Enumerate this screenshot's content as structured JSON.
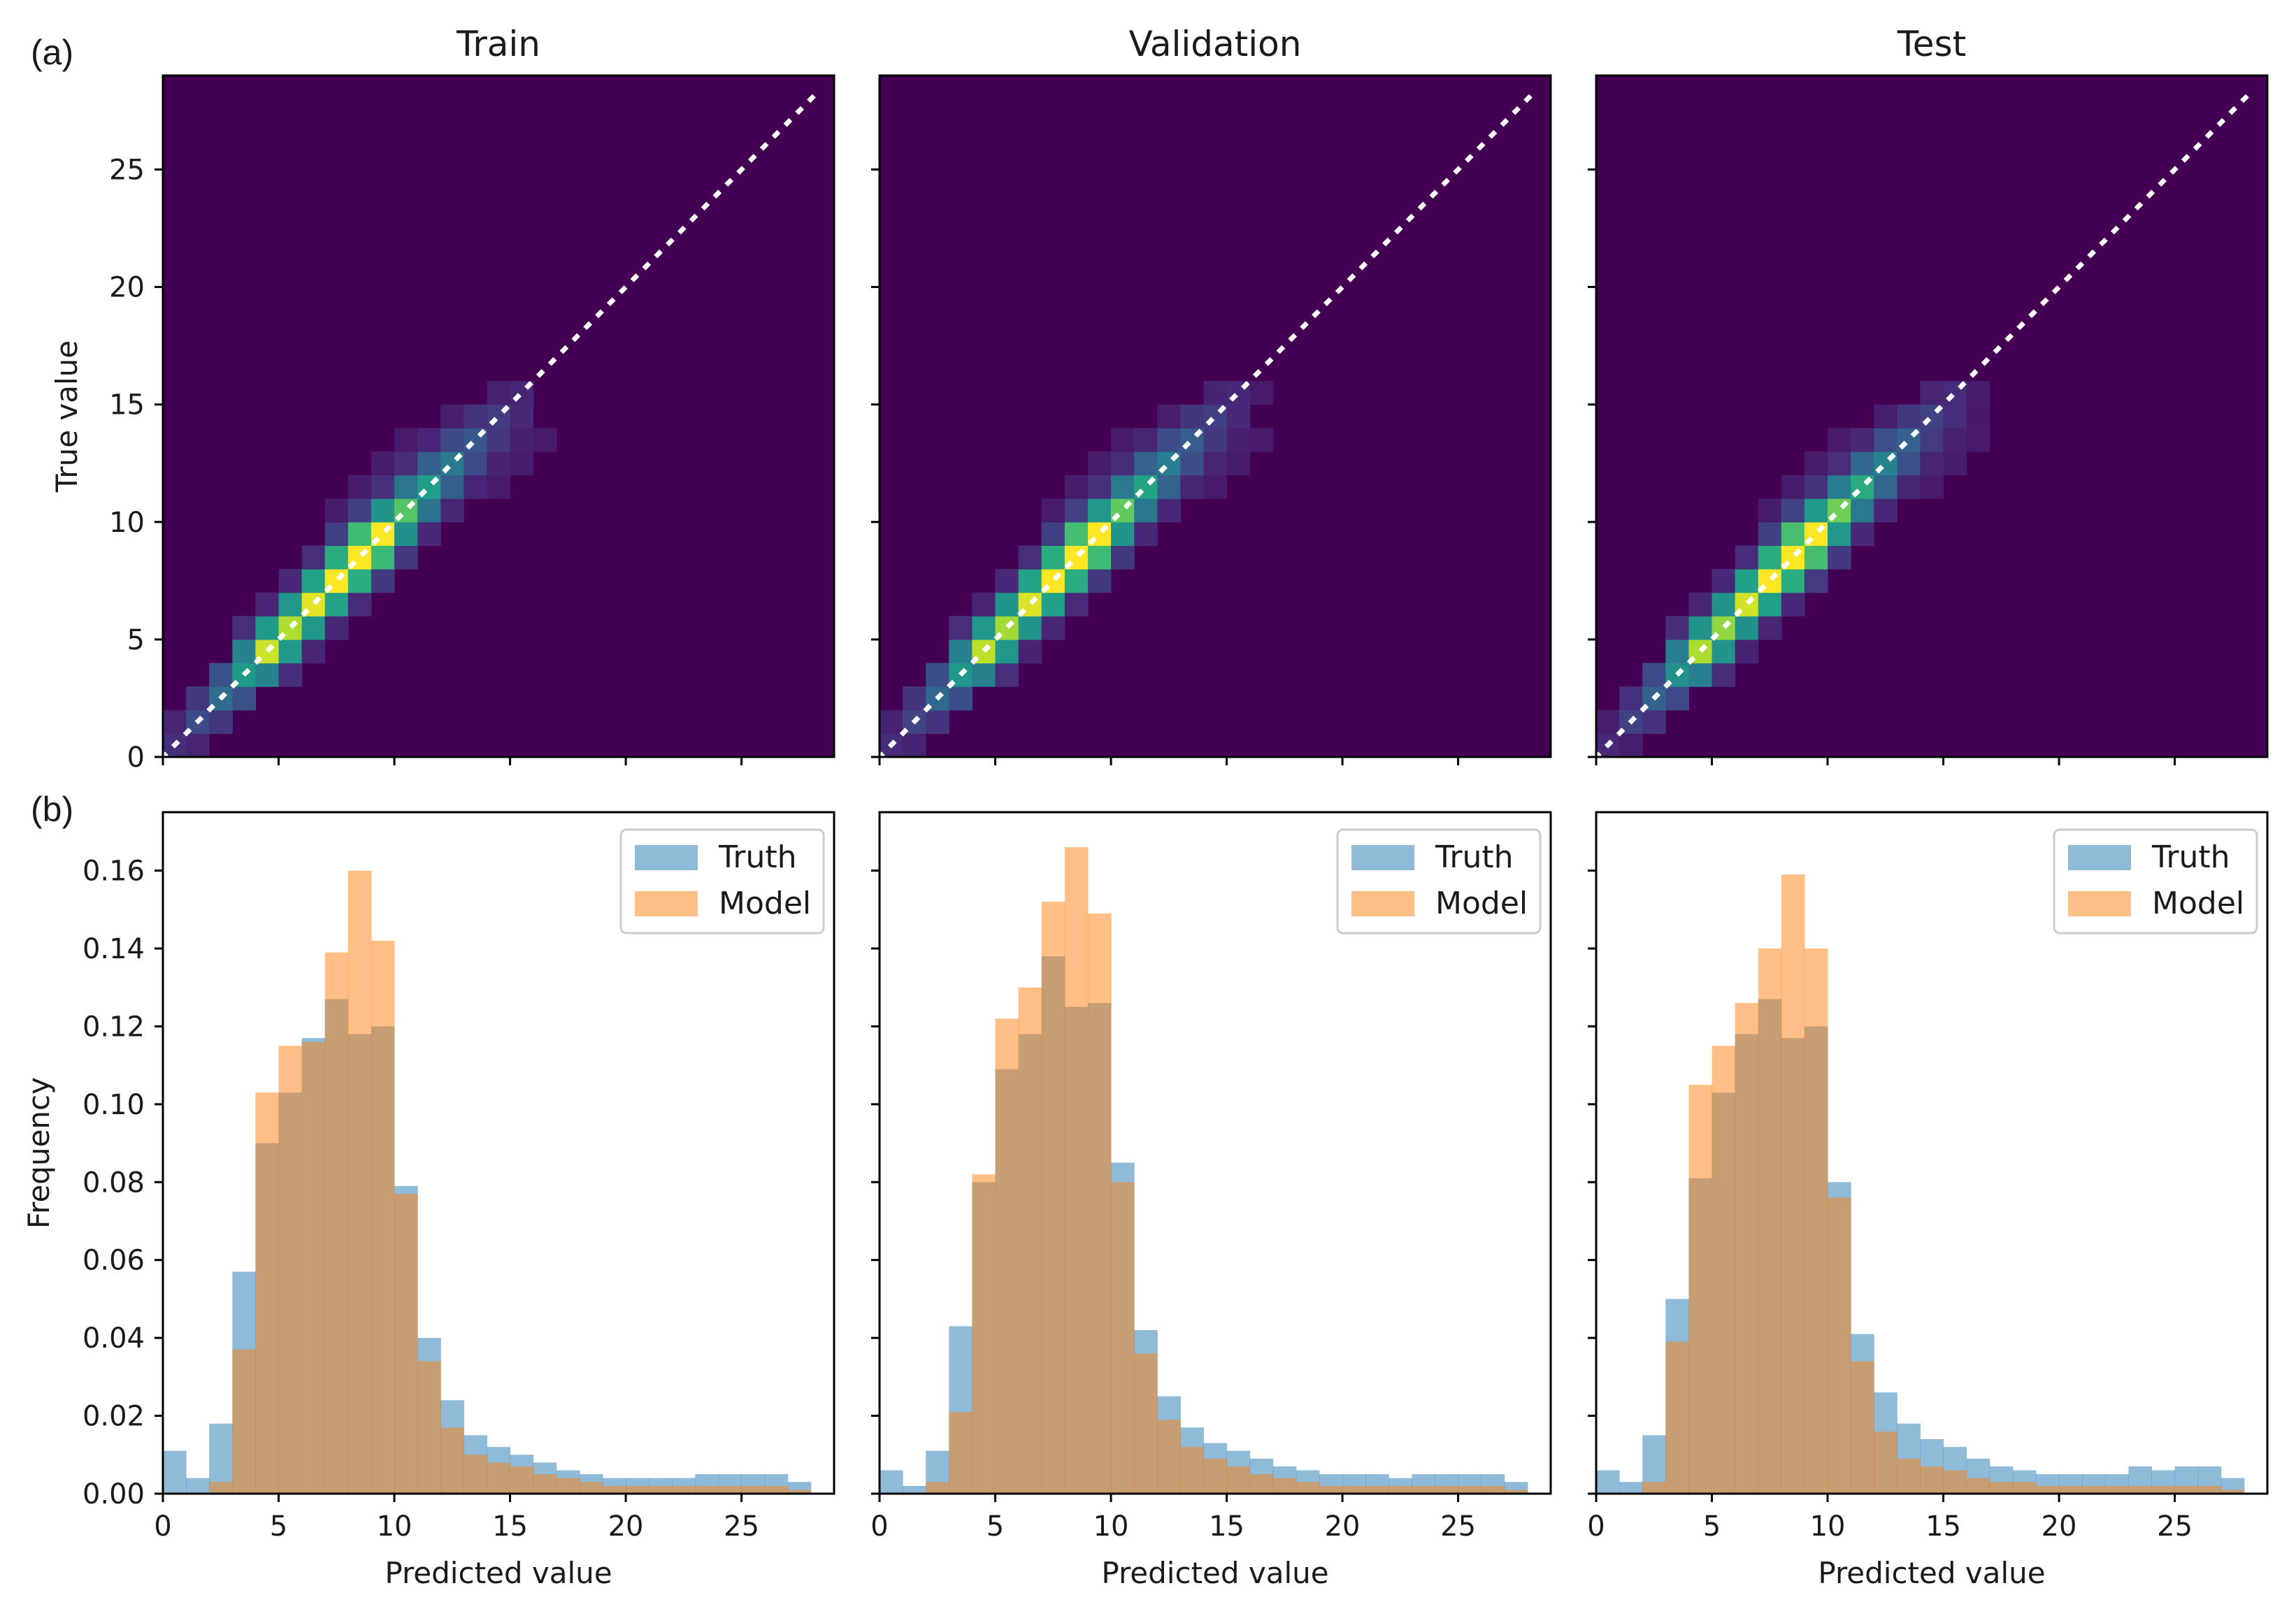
{
  "figure": {
    "panel_labels": [
      "(a)",
      "(b)"
    ],
    "x_label": "Predicted value",
    "heatmap_y_label": "True value",
    "hist_y_label": "Frequency"
  },
  "colors": {
    "truth": "#1f77b4",
    "model": "#ff7f0e",
    "identity_line": "#ffffff",
    "viridis": [
      "#440154",
      "#482878",
      "#3e4a89",
      "#31688e",
      "#26828e",
      "#1f9e89",
      "#35b779",
      "#6ece58",
      "#b5de2b",
      "#fde725"
    ]
  },
  "chart_data": [
    {
      "type": "heatmap",
      "id": "heatmap-train",
      "title": "Train",
      "xlabel": "",
      "ylabel": "True value",
      "xlim": [
        0,
        29
      ],
      "ylim": [
        0,
        29
      ],
      "xticks": [
        0,
        5,
        10,
        15,
        20,
        25
      ],
      "yticks": [
        0,
        5,
        10,
        15,
        20,
        25
      ],
      "ytick_labels": [
        "0",
        "5",
        "10",
        "15",
        "20",
        "25"
      ],
      "bin_width": 1,
      "colormap": "viridis",
      "identity_line": true,
      "description": "2D histogram of predicted vs. true value; density concentrated along the diagonal between 3 and 11, peaks near (4,4) and (8-9,8-9)"
    },
    {
      "type": "heatmap",
      "id": "heatmap-validation",
      "title": "Validation",
      "xlabel": "",
      "ylabel": "",
      "xlim": [
        0,
        29
      ],
      "ylim": [
        0,
        29
      ],
      "xticks": [
        0,
        5,
        10,
        15,
        20,
        25
      ],
      "yticks": [
        0,
        5,
        10,
        15,
        20,
        25
      ],
      "bin_width": 1,
      "colormap": "viridis",
      "identity_line": true
    },
    {
      "type": "heatmap",
      "id": "heatmap-test",
      "title": "Test",
      "xlabel": "",
      "ylabel": "",
      "xlim": [
        0,
        29
      ],
      "ylim": [
        0,
        29
      ],
      "xticks": [
        0,
        5,
        10,
        15,
        20,
        25
      ],
      "yticks": [
        0,
        5,
        10,
        15,
        20,
        25
      ],
      "bin_width": 1,
      "colormap": "viridis",
      "identity_line": true
    },
    {
      "type": "bar",
      "id": "hist-train",
      "xlabel": "Predicted value",
      "ylabel": "Frequency",
      "xlim": [
        0,
        29
      ],
      "ylim": [
        0,
        0.175
      ],
      "xticks": [
        0,
        5,
        10,
        15,
        20,
        25
      ],
      "xtick_labels": [
        "0",
        "5",
        "10",
        "15",
        "20",
        "25"
      ],
      "yticks": [
        0,
        0.02,
        0.04,
        0.06,
        0.08,
        0.1,
        0.12,
        0.14,
        0.16
      ],
      "ytick_labels": [
        "0.00",
        "0.02",
        "0.04",
        "0.06",
        "0.08",
        "0.10",
        "0.12",
        "0.14",
        "0.16"
      ],
      "bin_edges": [
        0,
        1,
        2,
        3,
        4,
        5,
        6,
        7,
        8,
        9,
        10,
        11,
        12,
        13,
        14,
        15,
        16,
        17,
        18,
        19,
        20,
        21,
        22,
        23,
        24,
        25,
        26,
        27,
        28
      ],
      "legend": "top-right",
      "series": [
        {
          "name": "Truth",
          "values": [
            0.011,
            0.004,
            0.018,
            0.057,
            0.09,
            0.103,
            0.117,
            0.127,
            0.118,
            0.12,
            0.079,
            0.04,
            0.024,
            0.015,
            0.012,
            0.01,
            0.008,
            0.006,
            0.005,
            0.004,
            0.004,
            0.004,
            0.004,
            0.005,
            0.005,
            0.005,
            0.005,
            0.003
          ]
        },
        {
          "name": "Model",
          "values": [
            0.0,
            0.0,
            0.003,
            0.037,
            0.103,
            0.115,
            0.116,
            0.139,
            0.16,
            0.142,
            0.077,
            0.034,
            0.017,
            0.01,
            0.008,
            0.007,
            0.005,
            0.004,
            0.003,
            0.002,
            0.002,
            0.002,
            0.002,
            0.002,
            0.002,
            0.002,
            0.002,
            0.001
          ]
        }
      ]
    },
    {
      "type": "bar",
      "id": "hist-validation",
      "xlabel": "Predicted value",
      "ylabel": "",
      "xlim": [
        0,
        29
      ],
      "ylim": [
        0,
        0.175
      ],
      "xticks": [
        0,
        5,
        10,
        15,
        20,
        25
      ],
      "xtick_labels": [
        "0",
        "5",
        "10",
        "15",
        "20",
        "25"
      ],
      "yticks": [
        0,
        0.02,
        0.04,
        0.06,
        0.08,
        0.1,
        0.12,
        0.14,
        0.16
      ],
      "bin_edges": [
        0,
        1,
        2,
        3,
        4,
        5,
        6,
        7,
        8,
        9,
        10,
        11,
        12,
        13,
        14,
        15,
        16,
        17,
        18,
        19,
        20,
        21,
        22,
        23,
        24,
        25,
        26,
        27,
        28
      ],
      "legend": "top-right",
      "series": [
        {
          "name": "Truth",
          "values": [
            0.006,
            0.002,
            0.011,
            0.043,
            0.08,
            0.109,
            0.118,
            0.138,
            0.125,
            0.126,
            0.085,
            0.042,
            0.025,
            0.017,
            0.013,
            0.011,
            0.009,
            0.007,
            0.006,
            0.005,
            0.005,
            0.005,
            0.004,
            0.005,
            0.005,
            0.005,
            0.005,
            0.003
          ]
        },
        {
          "name": "Model",
          "values": [
            0.0,
            0.0,
            0.003,
            0.021,
            0.082,
            0.122,
            0.13,
            0.152,
            0.166,
            0.149,
            0.08,
            0.036,
            0.019,
            0.012,
            0.009,
            0.007,
            0.005,
            0.004,
            0.003,
            0.002,
            0.002,
            0.002,
            0.002,
            0.002,
            0.002,
            0.002,
            0.002,
            0.001
          ]
        }
      ]
    },
    {
      "type": "bar",
      "id": "hist-test",
      "xlabel": "Predicted value",
      "ylabel": "",
      "xlim": [
        0,
        29
      ],
      "ylim": [
        0,
        0.175
      ],
      "xticks": [
        0,
        5,
        10,
        15,
        20,
        25
      ],
      "xtick_labels": [
        "0",
        "5",
        "10",
        "15",
        "20",
        "25"
      ],
      "yticks": [
        0,
        0.02,
        0.04,
        0.06,
        0.08,
        0.1,
        0.12,
        0.14,
        0.16
      ],
      "bin_edges": [
        0,
        1,
        2,
        3,
        4,
        5,
        6,
        7,
        8,
        9,
        10,
        11,
        12,
        13,
        14,
        15,
        16,
        17,
        18,
        19,
        20,
        21,
        22,
        23,
        24,
        25,
        26,
        27,
        28
      ],
      "legend": "top-right",
      "series": [
        {
          "name": "Truth",
          "values": [
            0.006,
            0.003,
            0.015,
            0.05,
            0.081,
            0.103,
            0.118,
            0.127,
            0.117,
            0.12,
            0.08,
            0.041,
            0.026,
            0.018,
            0.014,
            0.012,
            0.009,
            0.007,
            0.006,
            0.005,
            0.005,
            0.005,
            0.005,
            0.007,
            0.006,
            0.007,
            0.007,
            0.004
          ]
        },
        {
          "name": "Model",
          "values": [
            0.0,
            0.0,
            0.003,
            0.039,
            0.105,
            0.115,
            0.126,
            0.14,
            0.159,
            0.14,
            0.076,
            0.034,
            0.016,
            0.009,
            0.007,
            0.006,
            0.004,
            0.003,
            0.003,
            0.002,
            0.002,
            0.002,
            0.002,
            0.002,
            0.002,
            0.002,
            0.002,
            0.001
          ]
        }
      ]
    }
  ]
}
